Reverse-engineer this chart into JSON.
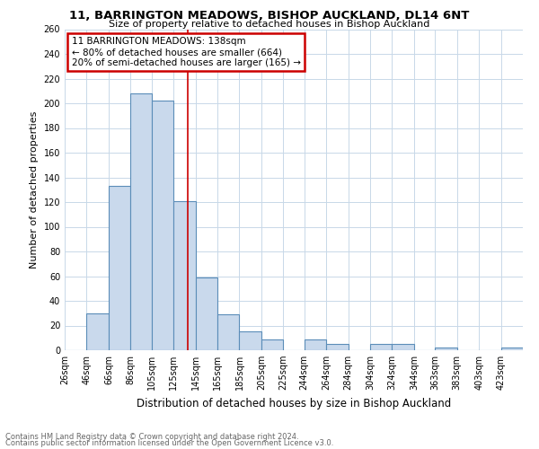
{
  "title": "11, BARRINGTON MEADOWS, BISHOP AUCKLAND, DL14 6NT",
  "subtitle": "Size of property relative to detached houses in Bishop Auckland",
  "xlabel": "Distribution of detached houses by size in Bishop Auckland",
  "ylabel": "Number of detached properties",
  "bar_labels": [
    "26sqm",
    "46sqm",
    "66sqm",
    "86sqm",
    "105sqm",
    "125sqm",
    "145sqm",
    "165sqm",
    "185sqm",
    "205sqm",
    "225sqm",
    "244sqm",
    "264sqm",
    "284sqm",
    "304sqm",
    "324sqm",
    "344sqm",
    "363sqm",
    "383sqm",
    "403sqm",
    "423sqm"
  ],
  "bar_values": [
    0,
    30,
    133,
    208,
    202,
    121,
    59,
    29,
    15,
    9,
    0,
    9,
    5,
    0,
    5,
    5,
    0,
    2,
    0,
    0,
    2
  ],
  "bin_lefts": [
    26,
    46,
    66,
    86,
    105,
    125,
    145,
    165,
    185,
    205,
    225,
    244,
    264,
    284,
    304,
    324,
    344,
    363,
    383,
    403,
    423
  ],
  "bar_color": "#c9d9ec",
  "bar_edge_color": "#5b8db8",
  "bar_edge_width": 0.8,
  "property_line_x": 138,
  "property_line_color": "#cc0000",
  "annotation_line1": "11 BARRINGTON MEADOWS: 138sqm",
  "annotation_line2": "← 80% of detached houses are smaller (664)",
  "annotation_line3": "20% of semi-detached houses are larger (165) →",
  "annotation_box_color": "#cc0000",
  "ylim": [
    0,
    260
  ],
  "yticks": [
    0,
    20,
    40,
    60,
    80,
    100,
    120,
    140,
    160,
    180,
    200,
    220,
    240,
    260
  ],
  "xlim_left": 26,
  "xlim_right": 443,
  "background_color": "#ffffff",
  "grid_color": "#c8d8e8",
  "title_fontsize": 9.5,
  "subtitle_fontsize": 8,
  "ylabel_fontsize": 8,
  "xlabel_fontsize": 8.5,
  "tick_fontsize": 7,
  "annot_fontsize": 7.5,
  "footer_line1": "Contains HM Land Registry data © Crown copyright and database right 2024.",
  "footer_line2": "Contains public sector information licensed under the Open Government Licence v3.0.",
  "footer_fontsize": 6
}
